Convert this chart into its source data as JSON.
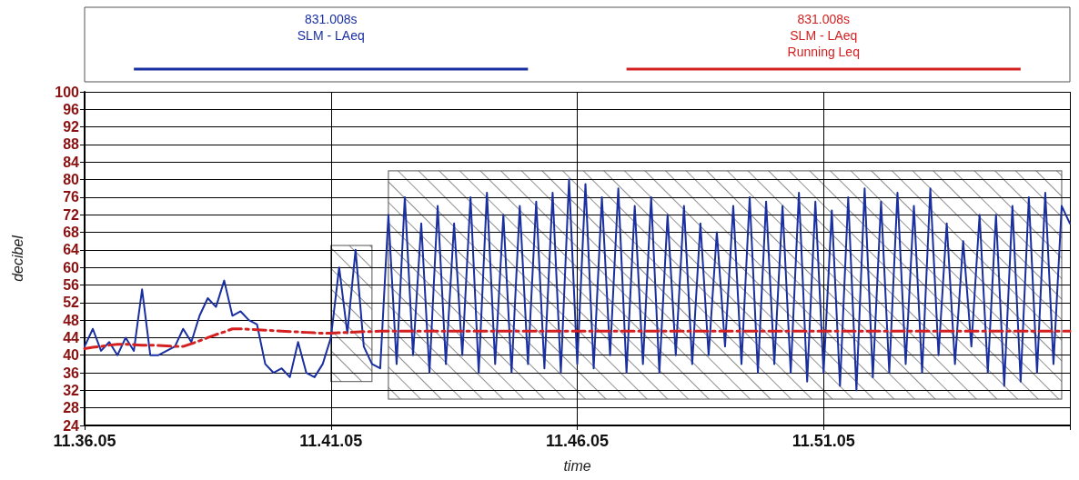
{
  "chart_data": {
    "type": "line",
    "xlabel": "time",
    "ylabel": "decibel",
    "categories": [
      "11.36.05",
      null,
      null,
      null,
      null,
      null,
      null,
      null,
      null,
      null,
      null,
      null,
      null,
      null,
      null,
      null,
      null,
      null,
      null,
      null,
      null,
      null,
      null,
      null,
      null,
      null,
      null,
      null,
      null,
      null,
      "11.41.05",
      null,
      null,
      null,
      null,
      null,
      null,
      null,
      null,
      null,
      null,
      null,
      null,
      null,
      null,
      null,
      null,
      null,
      null,
      null,
      null,
      null,
      null,
      null,
      null,
      null,
      null,
      null,
      null,
      null,
      "11.46.05",
      null,
      null,
      null,
      null,
      null,
      null,
      null,
      null,
      null,
      null,
      null,
      null,
      null,
      null,
      null,
      null,
      null,
      null,
      null,
      null,
      null,
      null,
      null,
      null,
      null,
      null,
      null,
      null,
      null,
      "11.51.05",
      null,
      null,
      null,
      null,
      null,
      null,
      null,
      null,
      null,
      null,
      null,
      null,
      null,
      null,
      null,
      null,
      null,
      null,
      null,
      null,
      null,
      null,
      null,
      null,
      null,
      null,
      null,
      null,
      null,
      null
    ],
    "ylim": [
      24,
      100
    ],
    "yticks": [
      24,
      28,
      32,
      36,
      40,
      44,
      48,
      52,
      56,
      60,
      64,
      68,
      72,
      76,
      80,
      84,
      88,
      92,
      96,
      100
    ],
    "grid": true,
    "legend": "top",
    "series": [
      {
        "name": "831.008s\nSLM - LAeq",
        "color": "#1a2fa0",
        "line_style": "solid",
        "values": [
          42,
          46,
          41,
          43,
          40,
          44,
          41,
          55,
          40,
          40,
          41,
          42,
          46,
          43,
          49,
          53,
          51,
          57,
          49,
          50,
          48,
          47,
          38,
          36,
          37,
          35,
          43,
          36,
          35,
          38,
          44,
          60,
          45,
          64,
          42,
          38,
          37,
          72,
          38,
          76,
          40,
          70,
          36,
          74,
          38,
          70,
          40,
          76,
          36,
          77,
          38,
          72,
          36,
          74,
          38,
          75,
          37,
          77,
          36,
          80,
          38,
          79,
          37,
          76,
          40,
          78,
          36,
          74,
          38,
          76,
          36,
          72,
          40,
          74,
          38,
          70,
          40,
          68,
          42,
          74,
          38,
          76,
          36,
          75,
          38,
          74,
          36,
          77,
          34,
          75,
          36,
          73,
          33,
          76,
          32,
          78,
          35,
          75,
          36,
          77,
          38,
          74,
          36,
          78,
          40,
          70,
          38,
          66,
          42,
          72,
          36,
          72,
          33,
          74,
          34,
          76,
          36,
          77,
          38,
          74,
          70
        ]
      },
      {
        "name": "831.008s\nSLM - LAeq\nRunning Leq",
        "color": "#d42020",
        "line_style": "dashed",
        "values": [
          41.5,
          41.8,
          42,
          42.3,
          42.5,
          42.5,
          42.4,
          42.3,
          42.3,
          42.2,
          42.1,
          42,
          42,
          42.6,
          43.3,
          44,
          44.7,
          45.3,
          46,
          46,
          45.9,
          45.8,
          45.7,
          45.6,
          45.5,
          45.4,
          45.3,
          45.2,
          45.1,
          45,
          45,
          45.1,
          45.2,
          45.3,
          45.4,
          45.4,
          45.5,
          45.5,
          45.5,
          45.5,
          45.5,
          45.5,
          45.5,
          45.5,
          45.5,
          45.5,
          45.5,
          45.5,
          45.5,
          45.5,
          45.5,
          45.5,
          45.5,
          45.5,
          45.5,
          45.5,
          45.5,
          45.5,
          45.5,
          45.5,
          45.5,
          45.5,
          45.5,
          45.5,
          45.5,
          45.5,
          45.5,
          45.5,
          45.5,
          45.5,
          45.5,
          45.5,
          45.5,
          45.5,
          45.5,
          45.5,
          45.5,
          45.5,
          45.5,
          45.5,
          45.5,
          45.5,
          45.5,
          45.5,
          45.5,
          45.5,
          45.5,
          45.5,
          45.5,
          45.5,
          45.5,
          45.5,
          45.5,
          45.5,
          45.5,
          45.5,
          45.5,
          45.5,
          45.5,
          45.5,
          45.5,
          45.5,
          45.5,
          45.5,
          45.5,
          45.5,
          45.5,
          45.5,
          45.5,
          45.5,
          45.5,
          45.5,
          45.5,
          45.5,
          45.5,
          45.5,
          45.5,
          45.5,
          45.5,
          45.5,
          45.5
        ]
      }
    ]
  }
}
